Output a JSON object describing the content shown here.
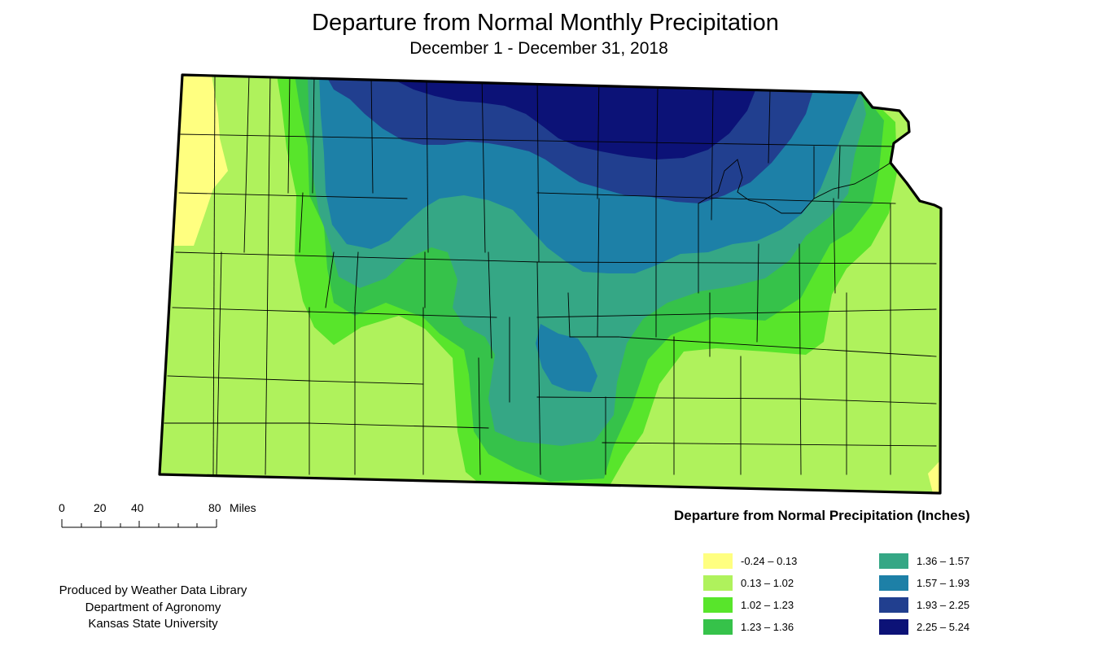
{
  "title": "Departure from Normal Monthly Precipitation",
  "subtitle": "December 1 - December 31, 2018",
  "legend": {
    "title": "Departure from Normal Precipitation (Inches)",
    "classes": [
      {
        "label": "-0.24 – 0.13",
        "color": "#ffff80"
      },
      {
        "label": "0.13 – 1.02",
        "color": "#aff25c"
      },
      {
        "label": "1.02 – 1.23",
        "color": "#58e52b"
      },
      {
        "label": "1.23 – 1.36",
        "color": "#36c24a"
      },
      {
        "label": "1.36 – 1.57",
        "color": "#35a785"
      },
      {
        "label": "1.57 – 1.93",
        "color": "#1d80a7"
      },
      {
        "label": "1.93 – 2.25",
        "color": "#213f8f"
      },
      {
        "label": "2.25 – 5.24",
        "color": "#0c1277"
      }
    ]
  },
  "scale": {
    "ticks": [
      "0",
      "20",
      "40",
      "80"
    ],
    "unit": "Miles"
  },
  "credits": [
    "Produced by Weather Data Library",
    "Department of Agronomy",
    "Kansas State University"
  ]
}
